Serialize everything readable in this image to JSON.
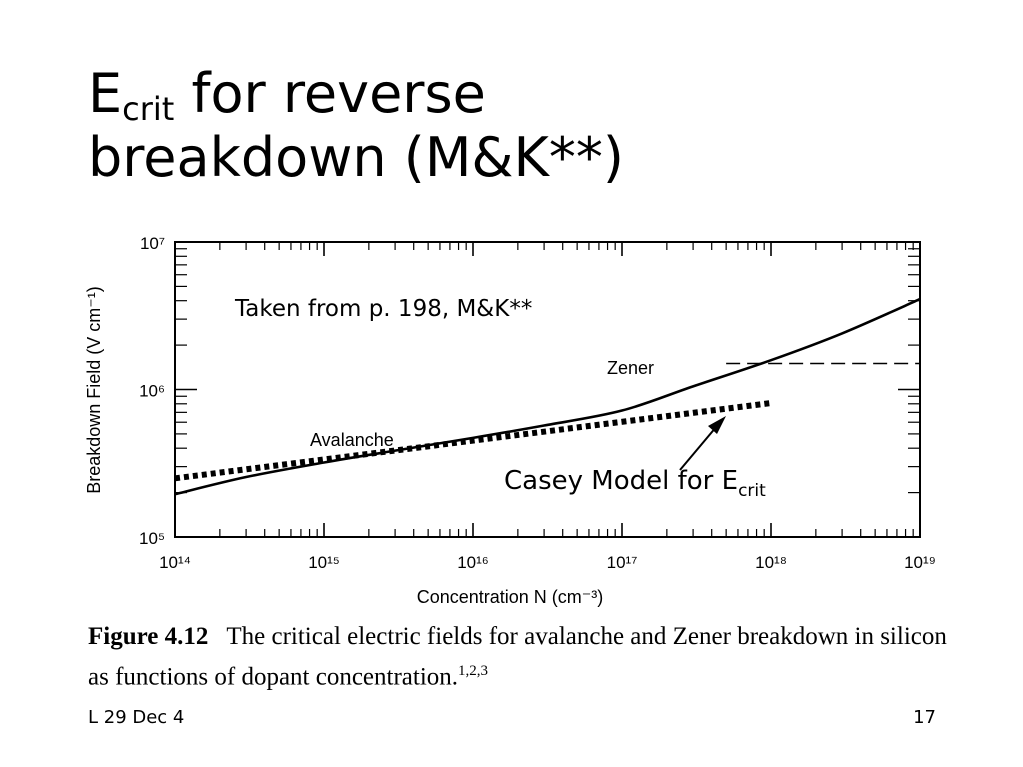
{
  "slide": {
    "title_main": "E",
    "title_sub": "crit",
    "title_rest": " for reverse",
    "title_line2": "breakdown (M&K**)",
    "footer_left": "L 29 Dec 4",
    "page_number": "17"
  },
  "caption": {
    "figure_number": "Figure 4.12",
    "text": "The critical electric fields for avalanche and Zener breakdown in silicon as functions of dopant concentration.",
    "refs": "1,2,3"
  },
  "chart_data": {
    "type": "line",
    "xscale": "log",
    "yscale": "log",
    "xlim": [
      100000000000000.0,
      1e+19
    ],
    "ylim": [
      100000.0,
      10000000.0
    ],
    "xlabel": "Concentration N (cm⁻³)",
    "ylabel": "Breakdown Field (V cm⁻¹)",
    "xticks": [
      {
        "v": 100000000000000.0,
        "label": "10¹⁴"
      },
      {
        "v": 1000000000000000.0,
        "label": "10¹⁵"
      },
      {
        "v": 1e+16,
        "label": "10¹⁶"
      },
      {
        "v": 1e+17,
        "label": "10¹⁷"
      },
      {
        "v": 1e+18,
        "label": "10¹⁸"
      },
      {
        "v": 1e+19,
        "label": "10¹⁹"
      }
    ],
    "yticks": [
      {
        "v": 100000.0,
        "label": "10⁵"
      },
      {
        "v": 1000000.0,
        "label": "10⁶"
      },
      {
        "v": 10000000.0,
        "label": "10⁷"
      }
    ],
    "series": [
      {
        "name": "Avalanche",
        "style": "solid",
        "x": [
          100000000000000.0,
          300000000000000.0,
          1000000000000000.0,
          3000000000000000.0,
          1e+16,
          3e+16,
          1e+17,
          3e+17,
          1e+18,
          3e+18,
          1e+19
        ],
        "y": [
          195000.0,
          255000.0,
          320000.0,
          385000.0,
          470000.0,
          570000.0,
          720000.0,
          1050000.0,
          1580000.0,
          2400000.0,
          4100000.0
        ]
      },
      {
        "name": "Zener",
        "style": "dashed",
        "x": [
          5e+17,
          1e+19
        ],
        "y": [
          1500000.0,
          1500000.0
        ]
      },
      {
        "name": "Casey Model for E",
        "name_sub": "crit",
        "style": "dotted",
        "color": "#000000",
        "x": [
          100000000000000.0,
          1e+18
        ],
        "y": [
          250000.0,
          810000.0
        ]
      }
    ],
    "annotations": {
      "source_note": "Taken from p. 198, M&K**",
      "avalanche_label": "Avalanche",
      "zener_label": "Zener",
      "casey_label": "Casey Model for E",
      "casey_label_sub": "crit"
    }
  }
}
